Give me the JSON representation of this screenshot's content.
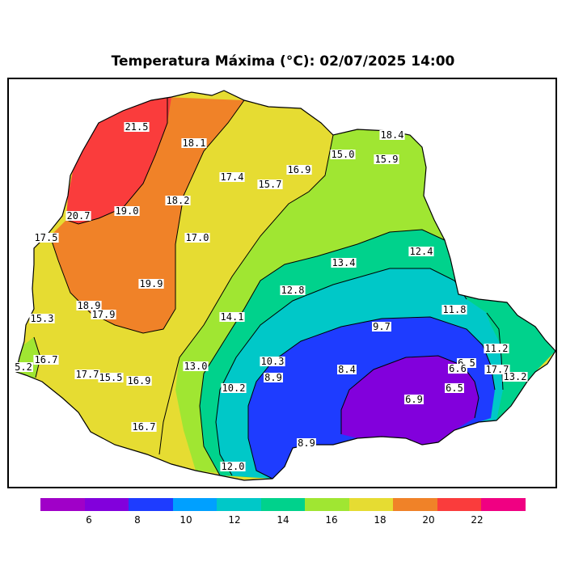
{
  "title": "Temperatura Máxima (°C): 02/07/2025 14:00",
  "legend": {
    "ticks": [
      "6",
      "8",
      "10",
      "12",
      "14",
      "16",
      "18",
      "20",
      "22"
    ],
    "colors": [
      "#a000c8",
      "#8200dc",
      "#1e3cff",
      "#00a0ff",
      "#00c8c8",
      "#00d28c",
      "#a0e632",
      "#e6dc32",
      "#f08228",
      "#fa3c3c",
      "#f00082"
    ]
  },
  "values": [
    "21.5",
    "18.1",
    "18.4",
    "15.0",
    "15.9",
    "17.4",
    "16.9",
    "15.7",
    "18.2",
    "20.7",
    "19.0",
    "17.5",
    "17.0",
    "12.4",
    "13.4",
    "19.9",
    "12.8",
    "18.9",
    "17.9",
    "15.3",
    "14.1",
    "11.8",
    "9.7",
    "11.2",
    "16.7",
    "5.2",
    "13.0",
    "10.3",
    "8.9",
    "8.4",
    "6.5",
    "6.6",
    "17.7",
    "13.2",
    "17.7",
    "15.5",
    "16.9",
    "10.2",
    "6.5",
    "6.9",
    "16.7",
    "8.9",
    "12.0"
  ]
}
